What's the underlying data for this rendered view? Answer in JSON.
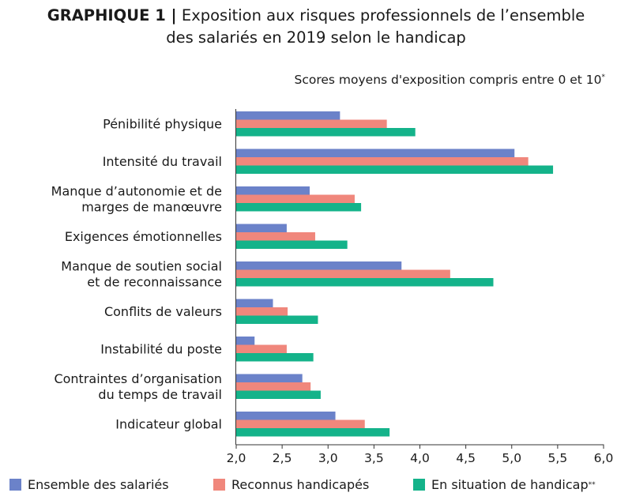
{
  "title": {
    "line1_bold": "GRAPHIQUE 1 |",
    "line1_rest": " Exposition aux risques professionnels de l’ensemble",
    "line2": "des salariés en 2019 selon le handicap"
  },
  "subtitle": "Scores moyens d'exposition compris entre 0 et 10",
  "subtitle_mark": "*",
  "colors": {
    "ensemble": "#6b82c9",
    "reconnus": "#f0877c",
    "situation": "#14b38a"
  },
  "chart_data": {
    "type": "bar",
    "orientation": "horizontal",
    "categories": [
      [
        "Pénibilité physique"
      ],
      [
        "Intensité du travail"
      ],
      [
        "Manque d’autonomie et de",
        "marges de manœuvre"
      ],
      [
        "Exigences émotionnelles"
      ],
      [
        "Manque de soutien social",
        "et de reconnaissance"
      ],
      [
        "Conflits de valeurs"
      ],
      [
        "Instabilité du poste"
      ],
      [
        "Contraintes d’organisation",
        "du temps de travail"
      ],
      [
        "Indicateur global"
      ]
    ],
    "series": [
      {
        "name": "Ensemble des salariés",
        "mark": "",
        "color": "#6b82c9",
        "values": [
          3.13,
          5.03,
          2.8,
          2.55,
          3.8,
          2.4,
          2.2,
          2.72,
          3.08
        ]
      },
      {
        "name": "Reconnus handicapés",
        "mark": "",
        "color": "#f0877c",
        "values": [
          3.64,
          5.18,
          3.29,
          2.86,
          4.33,
          2.56,
          2.55,
          2.81,
          3.4
        ]
      },
      {
        "name": "En situation de handicap",
        "mark": "**",
        "color": "#14b38a",
        "values": [
          3.95,
          5.45,
          3.36,
          3.21,
          4.8,
          2.89,
          2.84,
          2.92,
          3.67
        ]
      }
    ],
    "xlim": [
      2.0,
      6.0
    ],
    "xticks": [
      "2,0",
      "2,5",
      "3,0",
      "3,5",
      "4,0",
      "4,5",
      "5,0",
      "5,5",
      "6,0"
    ],
    "grid": false,
    "legend_position": "bottom"
  }
}
